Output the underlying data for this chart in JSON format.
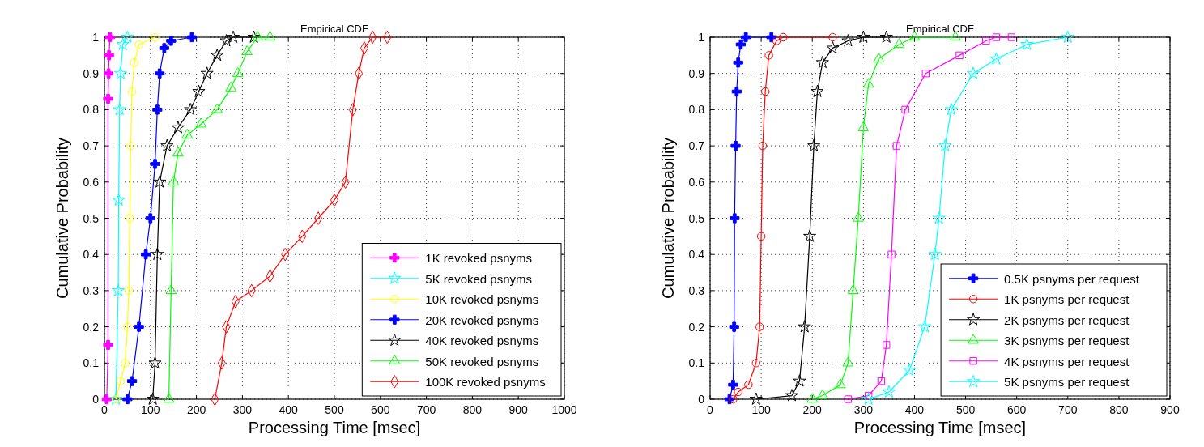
{
  "chart_data": [
    {
      "type": "line",
      "title": "Empirical CDF",
      "xlabel": "Processing Time [msec]",
      "ylabel": "Cumulative Probability",
      "xlim": [
        0,
        1000
      ],
      "xticks": [
        0,
        100,
        200,
        300,
        400,
        500,
        600,
        700,
        800,
        900,
        1000
      ],
      "ylim": [
        0,
        1
      ],
      "yticks": [
        0,
        0.1,
        0.2,
        0.3,
        0.4,
        0.5,
        0.6,
        0.7,
        0.8,
        0.9,
        1
      ],
      "grid": true,
      "legend": "bottom right",
      "series": [
        {
          "name": "1K revoked psnyms",
          "color": "#ff00ff",
          "marker": "cross",
          "x": [
            5,
            8,
            8,
            9,
            10,
            12
          ],
          "values": [
            0,
            0.15,
            0.83,
            0.9,
            0.95,
            1
          ]
        },
        {
          "name": "5K revoked psnyms",
          "color": "#00ffff",
          "marker": "star",
          "x": [
            25,
            30,
            31,
            33,
            35,
            40,
            50
          ],
          "values": [
            0,
            0.3,
            0.55,
            0.8,
            0.9,
            0.98,
            1
          ]
        },
        {
          "name": "10K revoked psnyms",
          "color": "#ffff00",
          "marker": "circle",
          "x": [
            25,
            35,
            45,
            50,
            53,
            55,
            57,
            60,
            65,
            75,
            110
          ],
          "values": [
            0,
            0.05,
            0.1,
            0.2,
            0.3,
            0.5,
            0.7,
            0.85,
            0.93,
            0.98,
            1
          ]
        },
        {
          "name": "20K revoked psnyms",
          "color": "#0000ff",
          "marker": "cross",
          "x": [
            50,
            60,
            75,
            90,
            100,
            110,
            115,
            120,
            130,
            145,
            190
          ],
          "values": [
            0,
            0.05,
            0.2,
            0.4,
            0.5,
            0.65,
            0.8,
            0.9,
            0.97,
            0.99,
            1
          ]
        },
        {
          "name": "40K revoked psnyms",
          "color": "#000000",
          "marker": "star",
          "x": [
            105,
            110,
            115,
            120,
            136,
            160,
            187,
            205,
            223,
            245,
            265,
            280,
            325
          ],
          "values": [
            0,
            0.1,
            0.4,
            0.6,
            0.7,
            0.75,
            0.8,
            0.85,
            0.9,
            0.95,
            0.99,
            1,
            1
          ]
        },
        {
          "name": "50K revoked psnyms",
          "color": "#00ff00",
          "marker": "triangle",
          "x": [
            140,
            145,
            150,
            160,
            180,
            210,
            245,
            275,
            290,
            310,
            333,
            360
          ],
          "values": [
            0,
            0.3,
            0.6,
            0.68,
            0.73,
            0.76,
            0.8,
            0.86,
            0.9,
            0.96,
            1,
            1
          ]
        },
        {
          "name": "100K revoked psnyms",
          "color": "#ff0000",
          "marker": "diamond",
          "x": [
            240,
            255,
            265,
            285,
            320,
            360,
            393,
            430,
            465,
            500,
            524,
            540,
            553,
            565,
            583,
            615
          ],
          "values": [
            0,
            0.1,
            0.2,
            0.27,
            0.3,
            0.34,
            0.4,
            0.45,
            0.5,
            0.55,
            0.6,
            0.8,
            0.9,
            0.97,
            1,
            1
          ]
        }
      ]
    },
    {
      "type": "line",
      "title": "Empirical CDF",
      "xlabel": "Processing Time [msec]",
      "ylabel": "Cumulative Probability",
      "xlim": [
        0,
        900
      ],
      "xticks": [
        0,
        100,
        200,
        300,
        400,
        500,
        600,
        700,
        800,
        900
      ],
      "ylim": [
        0,
        1
      ],
      "yticks": [
        0,
        0.1,
        0.2,
        0.3,
        0.4,
        0.5,
        0.6,
        0.7,
        0.8,
        0.9,
        1
      ],
      "grid": true,
      "legend": "bottom right",
      "series": [
        {
          "name": "0.5K psnyms per request",
          "color": "#0000ff",
          "marker": "cross",
          "x": [
            38,
            45,
            47,
            48,
            50,
            52,
            55,
            60,
            70,
            120
          ],
          "values": [
            0,
            0.04,
            0.2,
            0.5,
            0.7,
            0.85,
            0.93,
            0.98,
            1,
            1
          ]
        },
        {
          "name": "1K psnyms per request",
          "color": "#ff0000",
          "marker": "circle",
          "x": [
            45,
            55,
            75,
            90,
            97,
            100,
            103,
            108,
            115,
            130,
            143,
            240
          ],
          "values": [
            0,
            0.02,
            0.04,
            0.1,
            0.2,
            0.45,
            0.7,
            0.85,
            0.95,
            0.99,
            1,
            1
          ]
        },
        {
          "name": "2K psnyms per request",
          "color": "#000000",
          "marker": "star",
          "x": [
            90,
            160,
            175,
            185,
            195,
            203,
            210,
            220,
            240,
            270,
            300,
            345
          ],
          "values": [
            0,
            0.01,
            0.05,
            0.2,
            0.45,
            0.7,
            0.85,
            0.93,
            0.97,
            0.99,
            1,
            1
          ]
        },
        {
          "name": "3K psnyms per request",
          "color": "#00ff00",
          "marker": "triangle",
          "x": [
            200,
            220,
            255,
            270,
            280,
            290,
            300,
            310,
            330,
            370,
            400,
            480
          ],
          "values": [
            0,
            0.01,
            0.04,
            0.1,
            0.3,
            0.5,
            0.75,
            0.87,
            0.94,
            0.98,
            1,
            1
          ]
        },
        {
          "name": "4K psnyms per request",
          "color": "#ff00ff",
          "marker": "square",
          "x": [
            270,
            310,
            335,
            345,
            355,
            365,
            382,
            422,
            488,
            540,
            560,
            590
          ],
          "values": [
            0,
            0.01,
            0.05,
            0.15,
            0.4,
            0.7,
            0.8,
            0.9,
            0.95,
            0.99,
            1,
            1
          ]
        },
        {
          "name": "5K psnyms per request",
          "color": "#00ffff",
          "marker": "star",
          "x": [
            310,
            350,
            390,
            420,
            440,
            448,
            460,
            472,
            515,
            560,
            620,
            700
          ],
          "values": [
            0,
            0.02,
            0.08,
            0.2,
            0.4,
            0.5,
            0.7,
            0.8,
            0.9,
            0.94,
            0.98,
            1
          ]
        }
      ]
    }
  ]
}
